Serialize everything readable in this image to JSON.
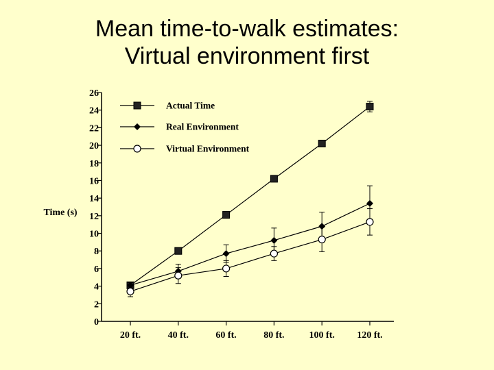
{
  "slide": {
    "title_line1": "Mean time-to-walk estimates:",
    "title_line2": "Virtual environment first"
  },
  "chart_data": {
    "type": "line",
    "categories": [
      "20 ft.",
      "40 ft.",
      "60 ft.",
      "80 ft.",
      "100 ft.",
      "120 ft."
    ],
    "ylabel": "Time (s)",
    "xlabel": "",
    "ylim": [
      0,
      26
    ],
    "yticks": [
      0,
      2,
      4,
      6,
      8,
      10,
      12,
      14,
      16,
      18,
      20,
      22,
      24,
      26
    ],
    "grid": false,
    "legend_position": "top-left",
    "series": [
      {
        "name": "Actual Time",
        "marker": "square",
        "values": [
          4.1,
          8.0,
          12.1,
          16.2,
          20.2,
          24.4
        ],
        "error": [
          0.2,
          0.2,
          0.2,
          0.2,
          0.2,
          0.6
        ]
      },
      {
        "name": "Real Environment",
        "marker": "diamond",
        "values": [
          4.1,
          5.7,
          7.7,
          9.2,
          10.8,
          13.4
        ],
        "error": [
          0.3,
          0.8,
          1.0,
          1.4,
          1.6,
          2.0
        ]
      },
      {
        "name": "Virtual  Environment",
        "marker": "circle",
        "values": [
          3.4,
          5.2,
          6.0,
          7.7,
          9.3,
          11.3
        ],
        "error": [
          0.6,
          0.9,
          0.9,
          0.8,
          1.4,
          1.5
        ]
      }
    ]
  }
}
